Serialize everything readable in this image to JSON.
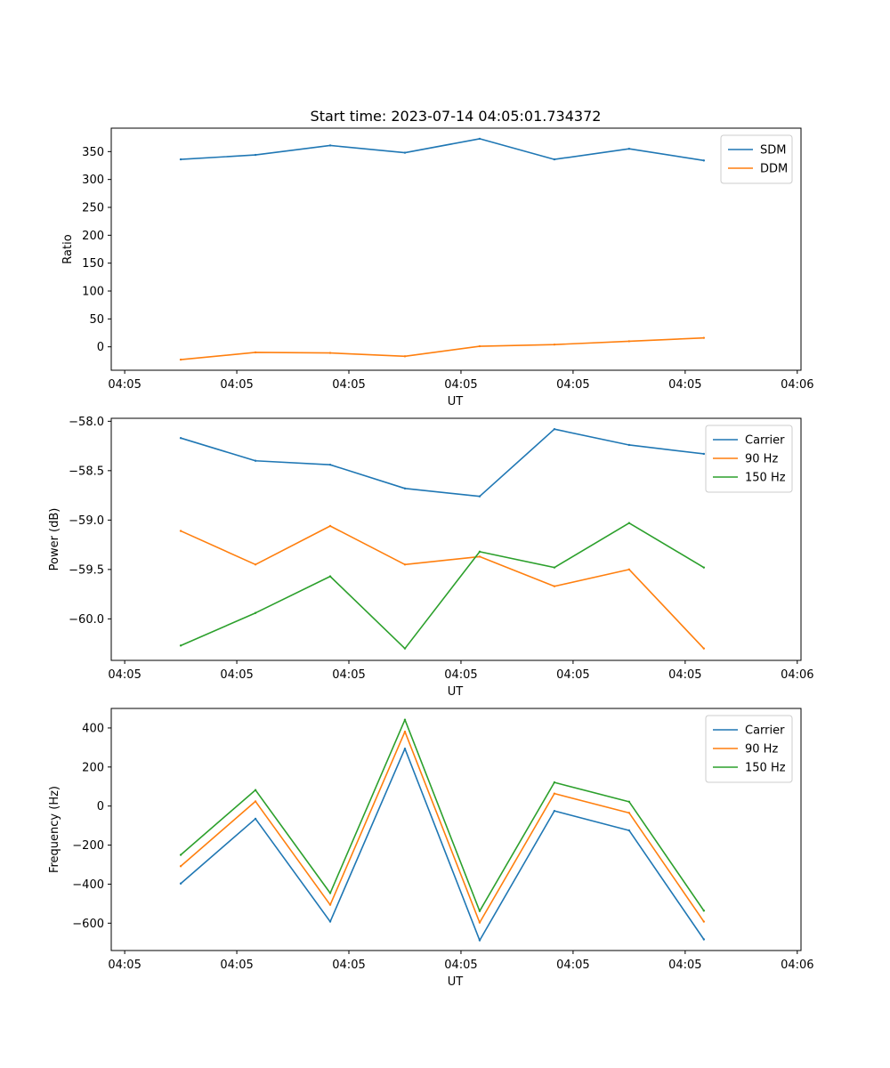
{
  "title": "Start time: 2023-07-14 04:05:01.734372",
  "colors": {
    "blue": "#1f77b4",
    "orange": "#ff7f0e",
    "green": "#2ca02c"
  },
  "chart_data": [
    {
      "type": "line",
      "xlabel": "UT",
      "ylabel": "Ratio",
      "xlim": [
        -0.18,
        9.05
      ],
      "ylim": [
        -42,
        392
      ],
      "x": [
        0.75,
        1.75,
        2.75,
        3.75,
        4.75,
        5.75,
        6.75,
        7.75
      ],
      "x_ticks": [
        0,
        1.5,
        3,
        4.5,
        6,
        7.5,
        9
      ],
      "x_tick_labels": [
        "04:05",
        "04:05",
        "04:05",
        "04:05",
        "04:05",
        "04:05",
        "04:06"
      ],
      "y_ticks": [
        0,
        50,
        100,
        150,
        200,
        250,
        300,
        350
      ],
      "y_tick_labels": [
        "0",
        "50",
        "100",
        "150",
        "200",
        "250",
        "300",
        "350"
      ],
      "legend_position": "top-right",
      "series": [
        {
          "name": "SDM",
          "color": "#1f77b4",
          "values": [
            336,
            344,
            361,
            348,
            373,
            336,
            355,
            334
          ]
        },
        {
          "name": "DDM",
          "color": "#ff7f0e",
          "values": [
            -23,
            -10,
            -11,
            -17,
            1,
            4,
            10,
            16
          ]
        }
      ]
    },
    {
      "type": "line",
      "xlabel": "UT",
      "ylabel": "Power (dB)",
      "xlim": [
        -0.18,
        9.05
      ],
      "ylim": [
        -60.42,
        -57.97
      ],
      "x": [
        0.75,
        1.75,
        2.75,
        3.75,
        4.75,
        5.75,
        6.75,
        7.75
      ],
      "x_ticks": [
        0,
        1.5,
        3,
        4.5,
        6,
        7.5,
        9
      ],
      "x_tick_labels": [
        "04:05",
        "04:05",
        "04:05",
        "04:05",
        "04:05",
        "04:05",
        "04:06"
      ],
      "y_ticks": [
        -60.0,
        -59.5,
        -59.0,
        -58.5,
        -58.0
      ],
      "y_tick_labels": [
        "−60.0",
        "−59.5",
        "−59.0",
        "−58.5",
        "−58.0"
      ],
      "legend_position": "top-right",
      "series": [
        {
          "name": "Carrier",
          "color": "#1f77b4",
          "values": [
            -58.17,
            -58.4,
            -58.44,
            -58.68,
            -58.76,
            -58.08,
            -58.24,
            -58.33
          ]
        },
        {
          "name": "90 Hz",
          "color": "#ff7f0e",
          "values": [
            -59.11,
            -59.45,
            -59.06,
            -59.45,
            -59.37,
            -59.67,
            -59.5,
            -60.3
          ]
        },
        {
          "name": "150 Hz",
          "color": "#2ca02c",
          "values": [
            -60.27,
            -59.94,
            -59.57,
            -60.3,
            -59.32,
            -59.48,
            -59.03,
            -59.48
          ]
        }
      ]
    },
    {
      "type": "line",
      "xlabel": "UT",
      "ylabel": "Frequency (Hz)",
      "xlim": [
        -0.18,
        9.05
      ],
      "ylim": [
        -740,
        500
      ],
      "x": [
        0.75,
        1.75,
        2.75,
        3.75,
        4.75,
        5.75,
        6.75,
        7.75
      ],
      "x_ticks": [
        0,
        1.5,
        3,
        4.5,
        6,
        7.5,
        9
      ],
      "x_tick_labels": [
        "04:05",
        "04:05",
        "04:05",
        "04:05",
        "04:05",
        "04:05",
        "04:06"
      ],
      "y_ticks": [
        -600,
        -400,
        -200,
        0,
        200,
        400
      ],
      "y_tick_labels": [
        "−600",
        "−400",
        "−200",
        "0",
        "200",
        "400"
      ],
      "legend_position": "top-right",
      "series": [
        {
          "name": "Carrier",
          "color": "#1f77b4",
          "values": [
            -397,
            -65,
            -592,
            294,
            -688,
            -25,
            -125,
            -683
          ]
        },
        {
          "name": "90 Hz",
          "color": "#ff7f0e",
          "values": [
            -308,
            24,
            -506,
            381,
            -597,
            64,
            -35,
            -592
          ]
        },
        {
          "name": "150 Hz",
          "color": "#2ca02c",
          "values": [
            -250,
            82,
            -446,
            442,
            -538,
            121,
            22,
            -536
          ]
        }
      ]
    }
  ]
}
